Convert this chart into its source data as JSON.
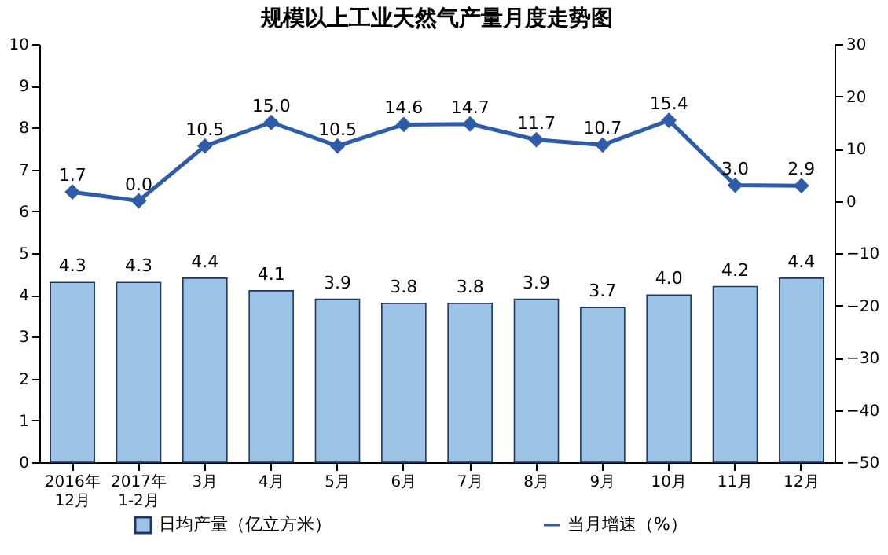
{
  "chart_data": {
    "type": "bar",
    "title": "规模以上工业天然气产量月度走势图",
    "categories": [
      "2016年\n12月",
      "2017年\n1-2月",
      "3月",
      "4月",
      "5月",
      "6月",
      "7月",
      "8月",
      "9月",
      "10月",
      "11月",
      "12月"
    ],
    "series": [
      {
        "name": "日均产量（亿立方米）",
        "color": "#9dc3e6",
        "values": [
          4.3,
          4.3,
          4.4,
          4.1,
          3.9,
          3.8,
          3.8,
          3.9,
          3.7,
          4.0,
          4.2,
          4.4
        ],
        "value_labels": [
          "4.3",
          "4.3",
          "4.4",
          "4.1",
          "3.9",
          "3.8",
          "3.8",
          "3.9",
          "3.7",
          "4.0",
          "4.2",
          "4.4"
        ]
      },
      {
        "name": "当月增速（%）",
        "type": "line",
        "axis": "y2",
        "color": "#2e5ca8",
        "values": [
          1.7,
          0.0,
          10.5,
          15.0,
          10.5,
          14.6,
          14.7,
          11.7,
          10.7,
          15.4,
          3.0,
          2.9
        ],
        "value_labels": [
          "1.7",
          "0.0",
          "10.5",
          "15.0",
          "10.5",
          "14.6",
          "14.7",
          "11.7",
          "10.7",
          "15.4",
          "3.0",
          "2.9"
        ]
      }
    ],
    "ylim": [
      0,
      10
    ],
    "yticks": [
      0,
      1,
      2,
      3,
      4,
      5,
      6,
      7,
      8,
      9,
      10
    ],
    "y2lim": [
      -50,
      30
    ],
    "y2ticks": [
      -50,
      -40,
      -30,
      -20,
      -10,
      0,
      10,
      20,
      30
    ],
    "legend": "bottom",
    "grid": false,
    "marker": "diamond"
  }
}
